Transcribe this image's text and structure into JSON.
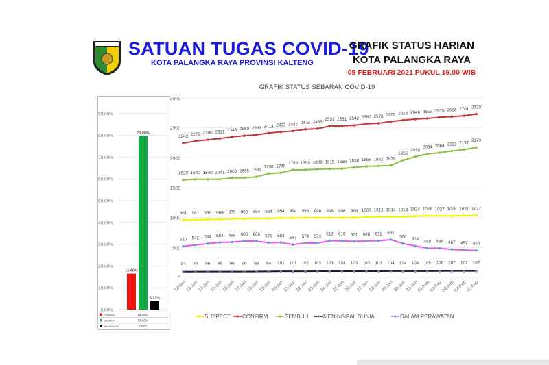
{
  "header": {
    "title": "SATUAN TUGAS COVID-19",
    "subtitle": "KOTA PALANGKA RAYA PROVINSI KALTENG",
    "logo_text": "PALANGKA RAYA",
    "right_title_1": "GRAFIK STATUS HARIAN",
    "right_title_2": "KOTA PALANGKA RAYA",
    "right_date": "05 FEBRUARI 2021 PUKUL 19.00 WIB"
  },
  "colors": {
    "title": "#1a1adc",
    "date": "#e02020",
    "suspect": "#f5f500",
    "confirm": "#c0393b",
    "sembuh": "#8fbf45",
    "meninggal": "#1a1a2e",
    "perawatan": "#ee55ee",
    "marker_perawatan": "#4ab0d0",
    "marker_meninggal": "#8a6cc0"
  },
  "chart_data": [
    {
      "type": "bar",
      "title": "",
      "categories": [
        "DIRAWAT",
        "SEMBUH",
        "MENINGGAL"
      ],
      "values": [
        16.48,
        79.6,
        3.92
      ],
      "value_labels": [
        "16,48%",
        "79,60%",
        "3,92%"
      ],
      "colors": [
        "#ee1111",
        "#11aa44",
        "#000000"
      ],
      "ylim": [
        0,
        90
      ],
      "yticks": [
        "0,00%",
        "10,00%",
        "20,00%",
        "30,00%",
        "40,00%",
        "50,00%",
        "60,00%",
        "70,00%",
        "80,00%",
        "90,00%"
      ],
      "table": [
        {
          "label": "DIRAWAT",
          "value": "16,48%"
        },
        {
          "label": "SEMBUH",
          "value": "79,60%"
        },
        {
          "label": "MENINGGAL",
          "value": "3,92%"
        }
      ]
    },
    {
      "type": "line",
      "title": "GRAFIK STATUS SEBARAN COVID-19",
      "ylim": [
        0,
        3000
      ],
      "yticks": [
        0,
        500,
        1000,
        1500,
        2000,
        2500,
        3000
      ],
      "categories": [
        "12-Jan",
        "13-Jan",
        "14-Jan",
        "15-Jan",
        "16-Jan",
        "17-Jan",
        "18-Jan",
        "19-Jan",
        "20-Jan",
        "21-Jan",
        "22-Jan",
        "23-Jan",
        "24-Jan",
        "25-Jan",
        "26-Jan",
        "27-Jan",
        "28-Jan",
        "29-Jan",
        "30-Jan",
        "31-Jan",
        "01-Feb",
        "02-Feb",
        "03-Feb",
        "04-Feb",
        "05-Feb"
      ],
      "legend_position": "bottom",
      "series": [
        {
          "name": "SUSPECT",
          "values": [
            961,
            961,
            969,
            969,
            979,
            980,
            984,
            984,
            994,
            994,
            998,
            998,
            998,
            998,
            998,
            1007,
            1013,
            1014,
            1014,
            1024,
            1028,
            1027,
            1028,
            1031,
            1037
          ]
        },
        {
          "name": "CONFIRM",
          "values": [
            2243,
            2278,
            2300,
            2321,
            2348,
            2369,
            2383,
            2413,
            2433,
            2446,
            2475,
            2485,
            2531,
            2531,
            2542,
            2567,
            2576,
            2605,
            2628,
            2646,
            2657,
            2676,
            2686,
            2701,
            2730
          ]
        },
        {
          "name": "SEMBUH",
          "values": [
            1629,
            1640,
            1640,
            1641,
            1663,
            1665,
            1681,
            1736,
            1749,
            1798,
            1799,
            1809,
            1815,
            1818,
            1838,
            1856,
            1862,
            1870,
            1958,
            2018,
            2064,
            2084,
            2112,
            2137,
            2173
          ]
        },
        {
          "name": "MENINGGAL DUNIA",
          "values": [
            94,
            96,
            96,
            96,
            96,
            96,
            98,
            99,
            101,
            101,
            102,
            103,
            103,
            103,
            103,
            103,
            103,
            104,
            104,
            104,
            105,
            106,
            107,
            107,
            107
          ]
        },
        {
          "name": "DALAM PERAWATAN",
          "values": [
            520,
            542,
            564,
            584,
            589,
            608,
            606,
            578,
            583,
            547,
            574,
            573,
            613,
            610,
            601,
            608,
            611,
            631,
            566,
            524,
            488,
            486,
            467,
            457,
            450
          ]
        }
      ]
    }
  ]
}
